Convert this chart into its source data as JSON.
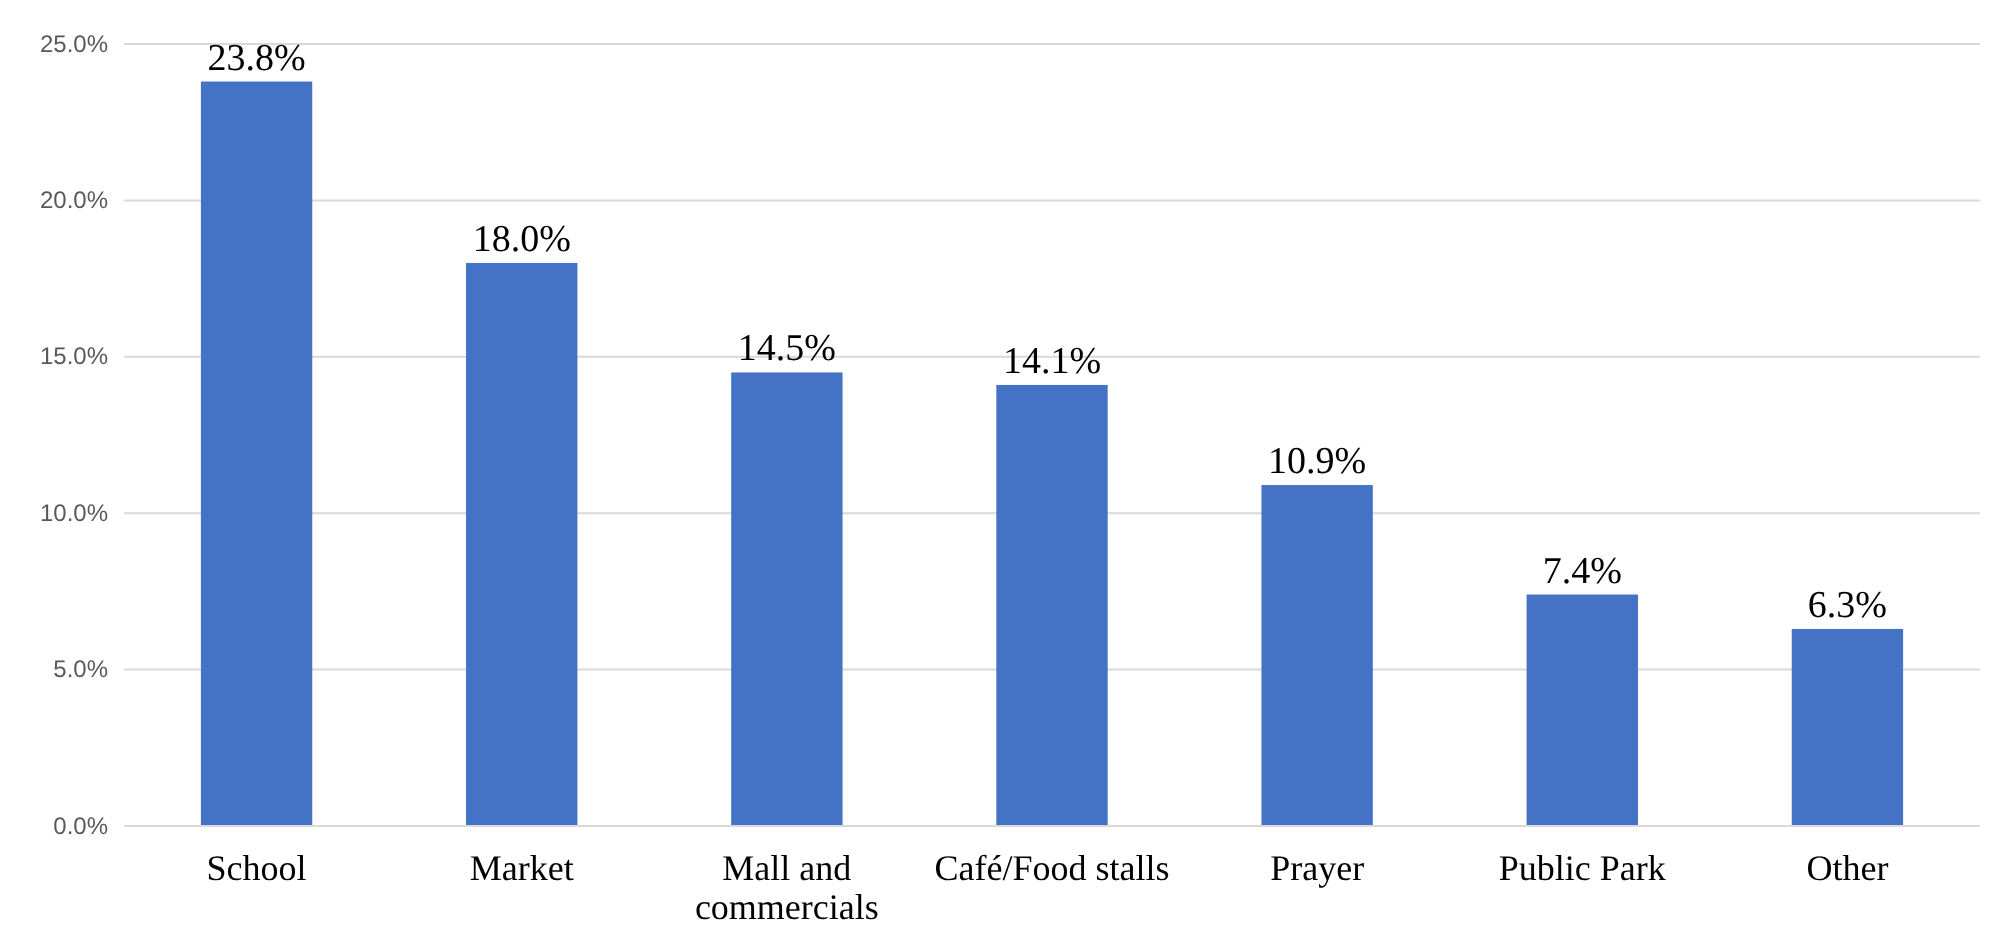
{
  "chart_data": {
    "type": "bar",
    "categories": [
      "School",
      "Market",
      "Mall and commercials",
      "Café/Food stalls",
      "Prayer",
      "Public Park",
      "Other"
    ],
    "values": [
      23.8,
      18.0,
      14.5,
      14.1,
      10.9,
      7.4,
      6.3
    ],
    "value_labels": [
      "23.8%",
      "18.0%",
      "14.5%",
      "14.1%",
      "10.9%",
      "7.4%",
      "6.3%"
    ],
    "color": "#4472c4",
    "ylim": [
      0,
      25
    ],
    "yticks": [
      {
        "value": 0,
        "label": "0.0%"
      },
      {
        "value": 5,
        "label": "5.0%"
      },
      {
        "value": 10,
        "label": "10.0%"
      },
      {
        "value": 15,
        "label": "15.0%"
      },
      {
        "value": 20,
        "label": "20.0%"
      },
      {
        "value": 25,
        "label": "25.0%"
      }
    ],
    "grid": "y"
  }
}
